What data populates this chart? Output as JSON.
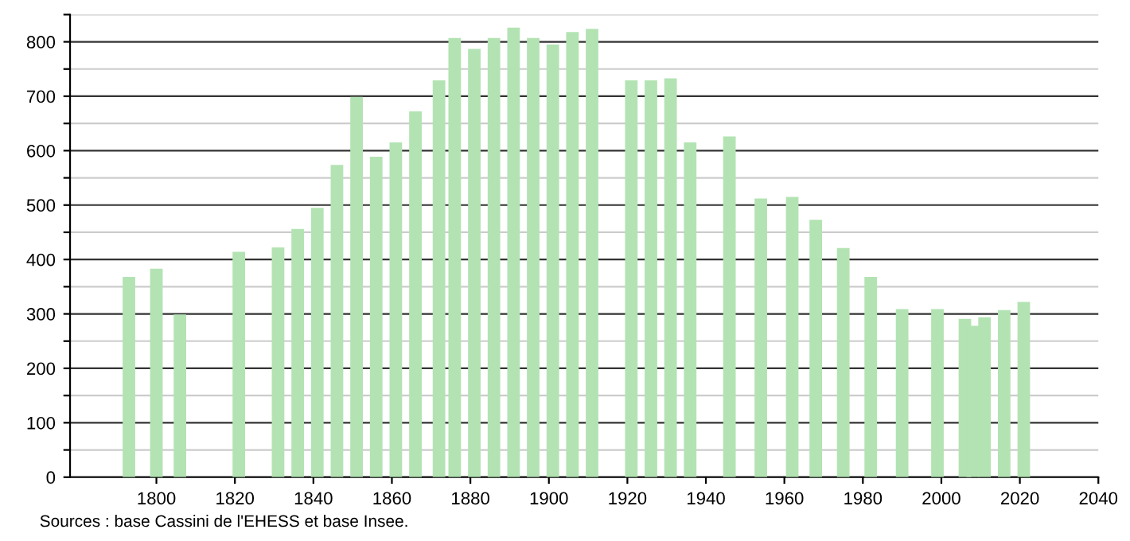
{
  "chart_data": {
    "type": "bar",
    "x": [
      1793,
      1800,
      1806,
      1821,
      1831,
      1836,
      1841,
      1846,
      1851,
      1856,
      1861,
      1866,
      1872,
      1876,
      1881,
      1886,
      1891,
      1896,
      1901,
      1906,
      1911,
      1921,
      1926,
      1931,
      1936,
      1946,
      1954,
      1962,
      1968,
      1975,
      1982,
      1990,
      1999,
      2006,
      2008,
      2011,
      2016,
      2021
    ],
    "values": [
      368,
      383,
      299,
      414,
      422,
      456,
      495,
      574,
      699,
      589,
      615,
      672,
      729,
      807,
      787,
      807,
      826,
      807,
      795,
      818,
      824,
      729,
      729,
      733,
      615,
      626,
      512,
      515,
      473,
      421,
      368,
      309,
      309,
      291,
      278,
      294,
      307,
      322
    ],
    "color": "#b3e3b3",
    "xlim": [
      1778,
      2040
    ],
    "xticks": [
      1800,
      1820,
      1840,
      1860,
      1880,
      1900,
      1920,
      1940,
      1960,
      1980,
      2000,
      2020,
      2040
    ],
    "ylim": [
      0,
      850
    ],
    "yticks": [
      0,
      {
        "value": 50,
        "label": null
      },
      100,
      {
        "value": 150,
        "label": null
      },
      200,
      {
        "value": 250,
        "label": null
      },
      300,
      {
        "value": 350,
        "label": null
      },
      400,
      {
        "value": 450,
        "label": null
      },
      500,
      {
        "value": 550,
        "label": null
      },
      600,
      {
        "value": 650,
        "label": null
      },
      700,
      {
        "value": 750,
        "label": null
      },
      800,
      {
        "value": 850,
        "label": null
      }
    ],
    "grid": "y",
    "annotations": [
      "Sources : base Cassini de l'EHESS et base Insee."
    ]
  }
}
